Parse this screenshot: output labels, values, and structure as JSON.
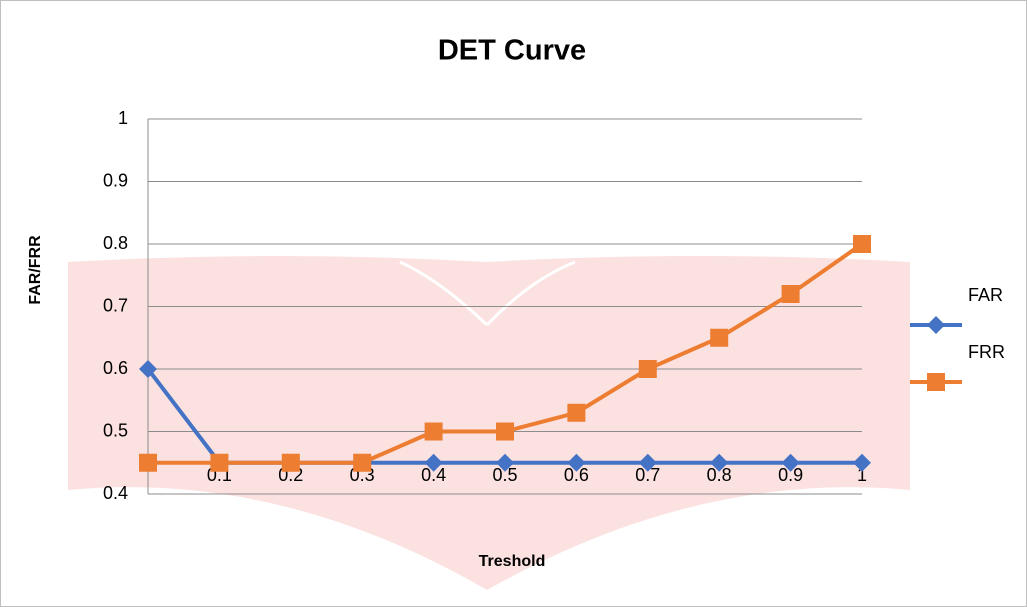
{
  "chart_data": {
    "type": "line",
    "title": "DET Curve",
    "x_label": "Treshold",
    "y_label": "FAR/FRR",
    "categories": [
      null,
      "0.1",
      "0.2",
      "0.3",
      "0.4",
      "0.5",
      "0.6",
      "0.7",
      "0.8",
      "0.9",
      "1"
    ],
    "series": [
      {
        "name": "FAR",
        "color": "#4472c4",
        "marker": "diamond",
        "values": [
          0.6,
          0.45,
          0.45,
          0.45,
          0.45,
          0.45,
          0.45,
          0.45,
          0.45,
          0.45,
          0.45
        ]
      },
      {
        "name": "FRR",
        "color": "#ed7d31",
        "marker": "square",
        "values": [
          0.45,
          0.45,
          0.45,
          0.45,
          0.5,
          0.5,
          0.53,
          0.6,
          0.65,
          0.72,
          0.8
        ]
      }
    ],
    "ylim": [
      0.4,
      1
    ],
    "yticks": [
      0.4,
      0.5,
      0.6,
      0.7,
      0.8,
      0.9,
      1
    ],
    "grid": true,
    "legend": "right"
  }
}
